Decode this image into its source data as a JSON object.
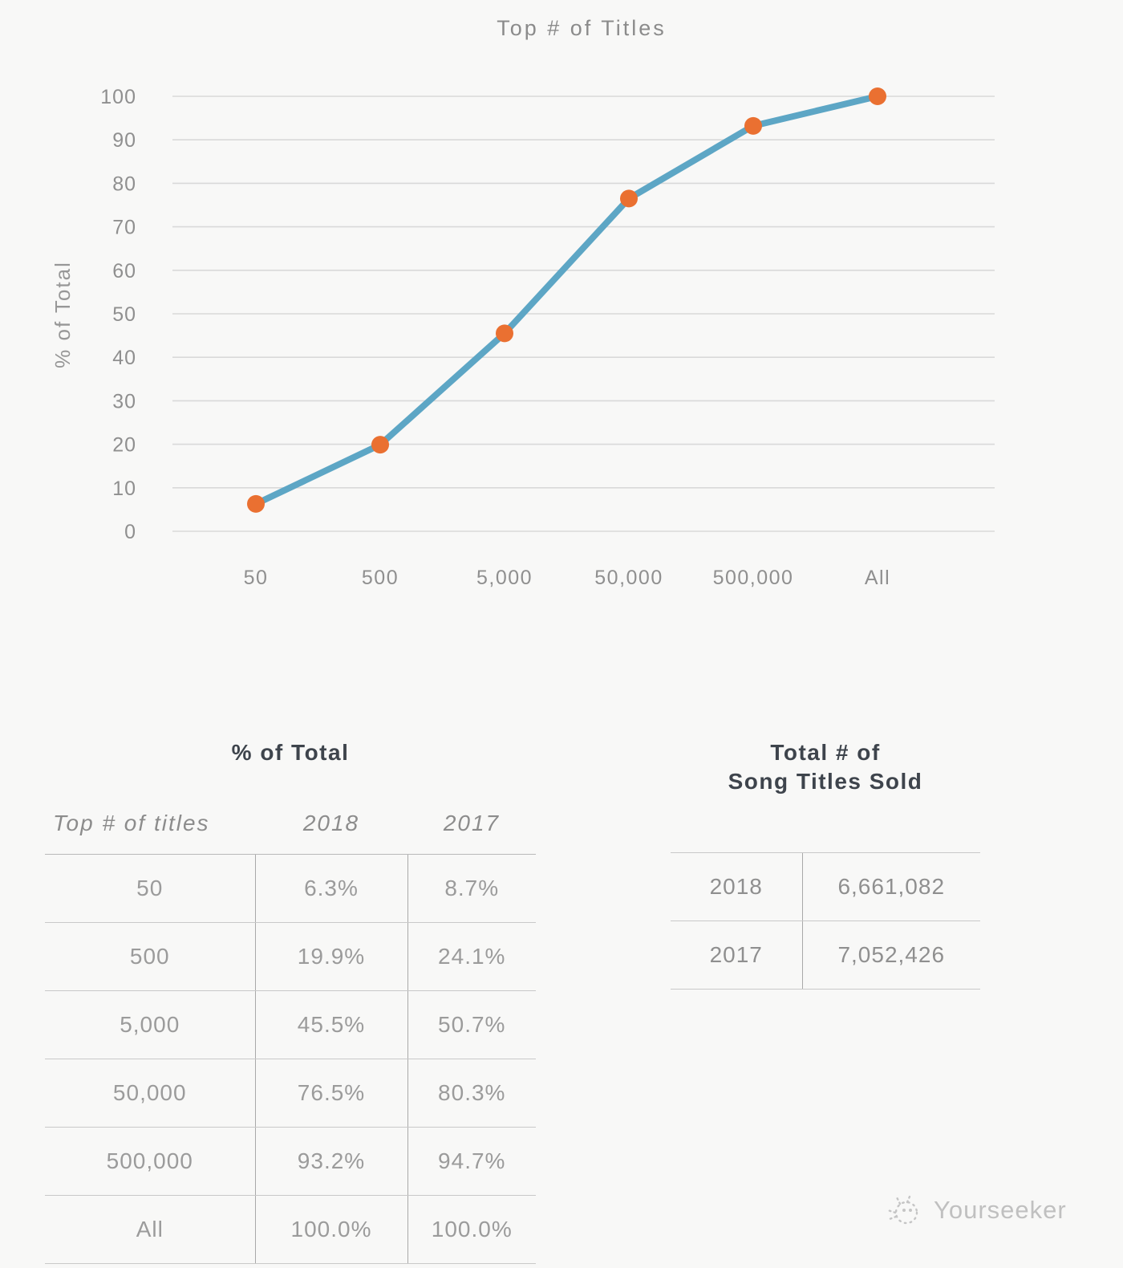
{
  "chart_data": {
    "type": "line",
    "title": "Top # of Titles",
    "ylabel": "% of Total",
    "xlabel": "",
    "categories": [
      "50",
      "500",
      "5,000",
      "50,000",
      "500,000",
      "All"
    ],
    "series": [
      {
        "name": "2018",
        "values": [
          6.3,
          19.9,
          45.5,
          76.5,
          93.2,
          100.0
        ]
      }
    ],
    "ylim": [
      0,
      100
    ],
    "y_ticks": [
      0,
      10,
      20,
      30,
      40,
      50,
      60,
      70,
      80,
      90,
      100
    ],
    "grid": true,
    "legend": false,
    "line_color": "#5da6c5",
    "marker_color": "#ea7031"
  },
  "tables": {
    "pct": {
      "title": "% of Total",
      "columns": [
        "Top # of titles",
        "2018",
        "2017"
      ],
      "rows": [
        [
          "50",
          "6.3%",
          "8.7%"
        ],
        [
          "500",
          "19.9%",
          "24.1%"
        ],
        [
          "5,000",
          "45.5%",
          "50.7%"
        ],
        [
          "50,000",
          "76.5%",
          "80.3%"
        ],
        [
          "500,000",
          "93.2%",
          "94.7%"
        ],
        [
          "All",
          "100.0%",
          "100.0%"
        ]
      ]
    },
    "totals": {
      "title_line1": "Total # of",
      "title_line2": "Song Titles Sold",
      "rows": [
        [
          "2018",
          "6,661,082"
        ],
        [
          "2017",
          "7,052,426"
        ]
      ]
    }
  },
  "watermark": {
    "text": "Yourseeker"
  }
}
